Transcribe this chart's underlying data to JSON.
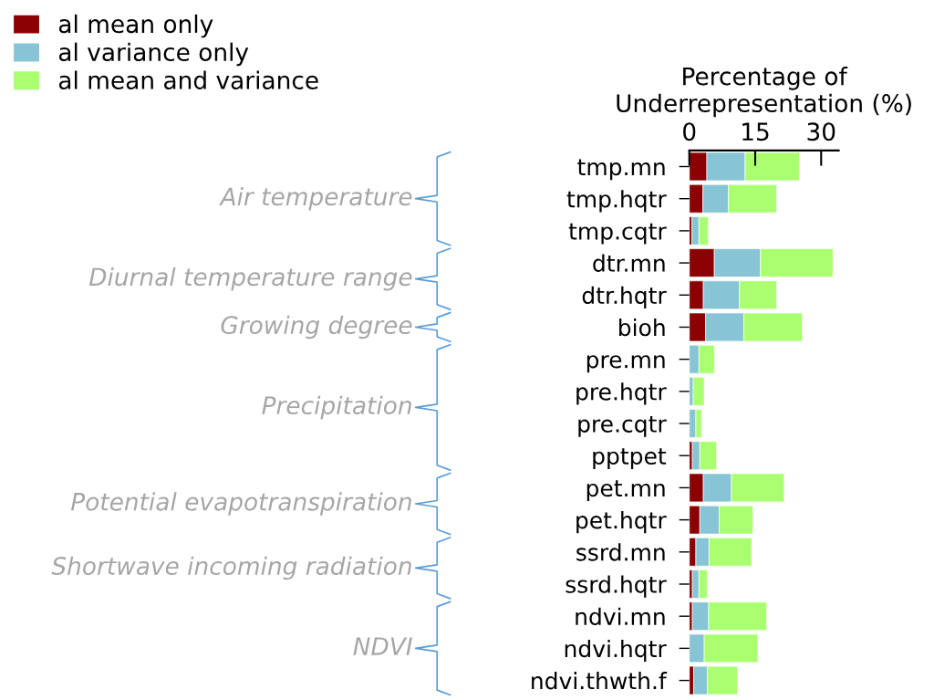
{
  "chart_data": {
    "type": "bar",
    "orientation": "horizontal",
    "stacked": true,
    "xlabel": "Percentage of\nUnderrepresentation (%)",
    "categories": [
      "tmp.mn",
      "tmp.hqtr",
      "tmp.cqtr",
      "dtr.mn",
      "dtr.hqtr",
      "bioh",
      "pre.mn",
      "pre.hqtr",
      "pre.cqtr",
      "pptpet",
      "pet.mn",
      "pet.hqtr",
      "ssrd.mn",
      "ssrd.hqtr",
      "ndvi.mn",
      "ndvi.hqtr",
      "ndvi.thwth.f"
    ],
    "series": [
      {
        "name": "al mean only",
        "color": "#8b0000",
        "values": [
          4.0,
          3.1,
          0.6,
          5.7,
          3.2,
          3.7,
          0,
          0,
          0,
          0.7,
          3.2,
          2.4,
          1.5,
          0.7,
          0.7,
          0,
          1.0
        ]
      },
      {
        "name": "al variance only",
        "color": "#87c5d6",
        "values": [
          8.7,
          5.8,
          1.6,
          10.5,
          8.2,
          8.7,
          2.2,
          0.9,
          1.5,
          1.7,
          6.4,
          4.4,
          3.0,
          1.5,
          3.7,
          3.4,
          3.1
        ]
      },
      {
        "name": "al mean and variance",
        "color": "#aaff70",
        "values": [
          12.4,
          11.0,
          2.1,
          16.5,
          8.5,
          13.3,
          3.5,
          2.5,
          1.3,
          3.8,
          12.0,
          7.7,
          9.7,
          1.9,
          13.2,
          12.2,
          6.9
        ]
      }
    ],
    "xlim": [
      0,
      34
    ],
    "xticks": [
      0,
      15,
      30
    ],
    "legend": "top left",
    "grid": false,
    "annotations": [
      "Air temperature",
      "Diurnal temperature range",
      "Growing degree",
      "Precipitation",
      "Potential evapotranspiration",
      "Shortwave incoming radiation",
      "NDVI"
    ]
  }
}
